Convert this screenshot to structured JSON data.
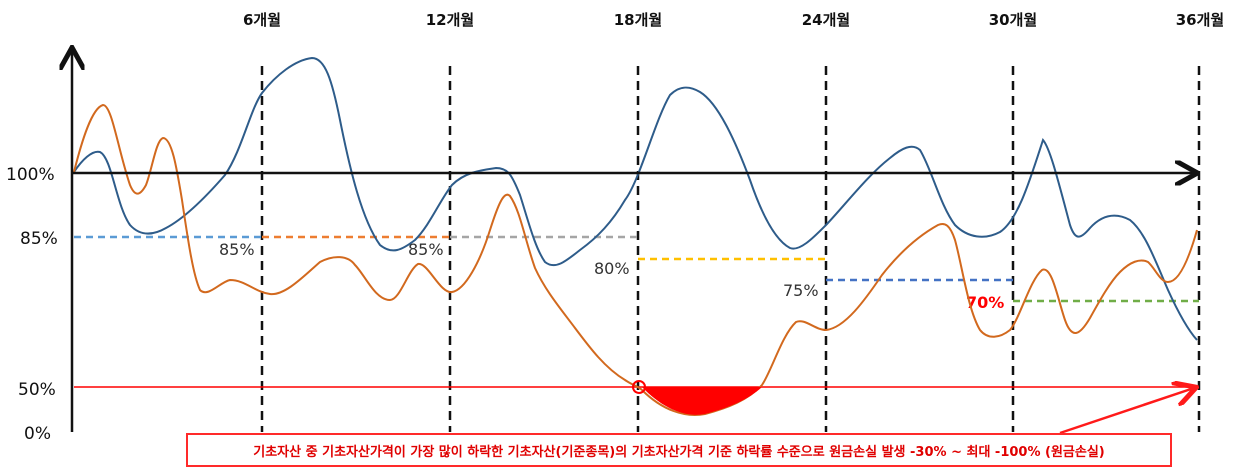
{
  "periods": [
    "6개월",
    "12개월",
    "18개월",
    "24개월",
    "30개월",
    "36개월"
  ],
  "y_labels": {
    "top": "100%",
    "barrier_start": "85%",
    "kick_in": "50%",
    "zero": "0%"
  },
  "barriers": [
    {
      "label": "85%",
      "value": 85,
      "color": "#5b9bd5"
    },
    {
      "label": "85%",
      "value": 85,
      "color": "#ed7d31"
    },
    {
      "label": "85%",
      "value": 85,
      "color": "#a5a5a5"
    },
    {
      "label": "80%",
      "value": 80,
      "color": "#ffc000"
    },
    {
      "label": "75%",
      "value": 75,
      "color": "#4472c4"
    },
    {
      "label": "70%",
      "value": 70,
      "color": "#70ad47"
    }
  ],
  "series_colors": {
    "blue": "#2e5c8a",
    "orange": "#d2691e",
    "kick_in": "#ff0000"
  },
  "note": "기초자산 중 기초자산가격이 가장 많이 하락한 기초자산(기준종목)의 기초자산가격 기준 하락률 수준으로 원금손실 발생 -30% ~ 최대 -100% (원금손실)"
}
